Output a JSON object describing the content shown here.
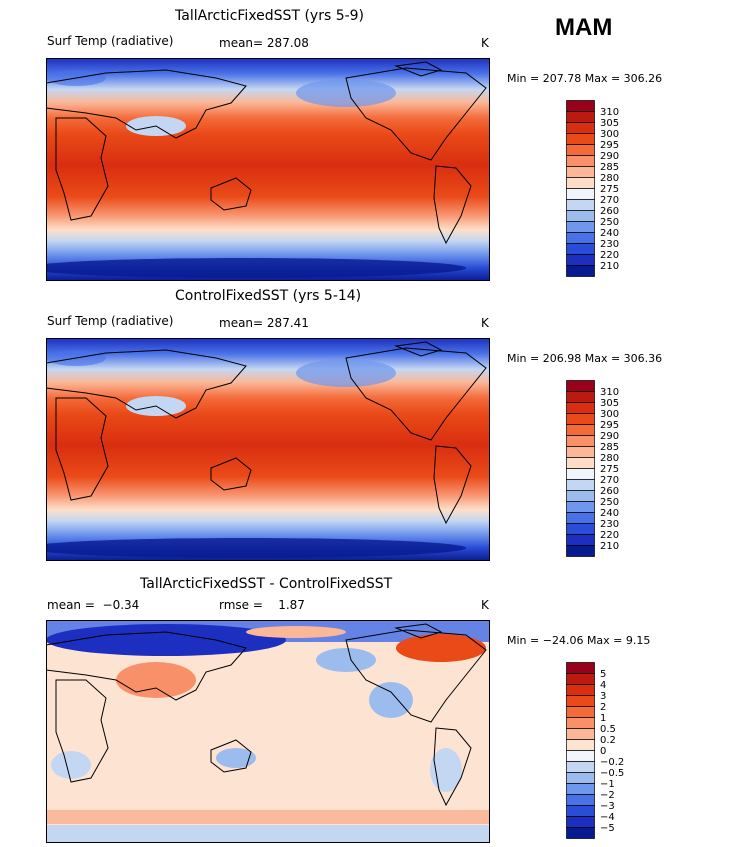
{
  "season": "MAM",
  "chart_data": [
    {
      "type": "heatmap",
      "title": "TallArcticFixedSST (yrs 5-9)",
      "variable": "Surf Temp (radiative)",
      "stat_label": "mean=",
      "stat_value": "287.08",
      "units": "K",
      "min_label": "Min = 207.78",
      "max_label": "Max = 306.26",
      "min": 207.78,
      "max": 306.26,
      "colorbar_levels": [
        "310",
        "305",
        "300",
        "295",
        "290",
        "285",
        "280",
        "275",
        "270",
        "260",
        "250",
        "240",
        "230",
        "220",
        "210"
      ],
      "colorbar_colors": [
        "#99001a",
        "#bb1a10",
        "#d92e10",
        "#ea4a18",
        "#f46b3a",
        "#f8906a",
        "#fbb797",
        "#fdddc7",
        "#f0f4fb",
        "#c4d7f2",
        "#9dbcee",
        "#6f97ec",
        "#4a72e8",
        "#2a4dd8",
        "#1c2fc0",
        "#081a8f"
      ]
    },
    {
      "type": "heatmap",
      "title": "ControlFixedSST (yrs 5-14)",
      "variable": "Surf Temp (radiative)",
      "stat_label": "mean=",
      "stat_value": "287.41",
      "units": "K",
      "min_label": "Min = 206.98",
      "max_label": "Max = 306.36",
      "min": 206.98,
      "max": 306.36,
      "colorbar_levels": [
        "310",
        "305",
        "300",
        "295",
        "290",
        "285",
        "280",
        "275",
        "270",
        "260",
        "250",
        "240",
        "230",
        "220",
        "210"
      ],
      "colorbar_colors": [
        "#99001a",
        "#bb1a10",
        "#d92e10",
        "#ea4a18",
        "#f46b3a",
        "#f8906a",
        "#fbb797",
        "#fdddc7",
        "#f0f4fb",
        "#c4d7f2",
        "#9dbcee",
        "#6f97ec",
        "#4a72e8",
        "#2a4dd8",
        "#1c2fc0",
        "#081a8f"
      ]
    },
    {
      "type": "heatmap",
      "title": "TallArcticFixedSST - ControlFixedSST",
      "stat_label": "mean =",
      "stat_value": "−0.34",
      "stat2_label": "rmse =",
      "stat2_value": "1.87",
      "units": "K",
      "min_label": "Min = −24.06",
      "max_label": "Max =    9.15",
      "min": -24.06,
      "max": 9.15,
      "colorbar_levels": [
        "5",
        "4",
        "3",
        "2",
        "1",
        "0.5",
        "0.2",
        "0",
        "−0.2",
        "−0.5",
        "−1",
        "−2",
        "−3",
        "−4",
        "−5"
      ],
      "colorbar_colors": [
        "#99001a",
        "#bb1a10",
        "#d92e10",
        "#ea4a18",
        "#f46b3a",
        "#f8906a",
        "#fbb797",
        "#fde4d2",
        "#f2f5fb",
        "#c4d7f2",
        "#9dbcee",
        "#6f97ec",
        "#4a72e8",
        "#2a4dd8",
        "#1c2fc0",
        "#081a8f"
      ]
    }
  ]
}
